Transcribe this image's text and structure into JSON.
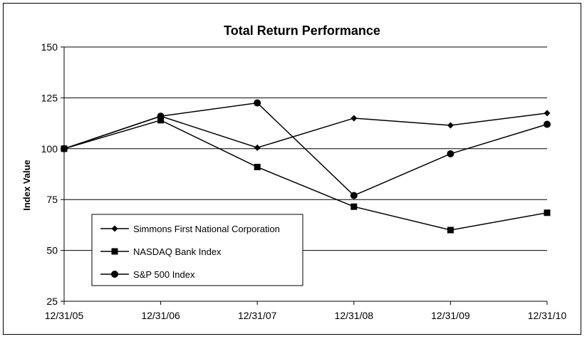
{
  "chart_data": {
    "type": "line",
    "title": "Total Return Performance",
    "xlabel": "",
    "ylabel": "Index Value",
    "categories": [
      "12/31/05",
      "12/31/06",
      "12/31/07",
      "12/31/08",
      "12/31/09",
      "12/31/10"
    ],
    "ylim": [
      25,
      150
    ],
    "yticks": [
      25,
      50,
      75,
      100,
      125,
      150
    ],
    "grid": true,
    "legend_position": "bottom-left",
    "series": [
      {
        "name": "Simmons First National Corporation",
        "marker": "diamond",
        "color": "#000000",
        "values": [
          100,
          116,
          100.5,
          115,
          111.5,
          117.5
        ]
      },
      {
        "name": "NASDAQ Bank Index",
        "marker": "square",
        "color": "#000000",
        "values": [
          100,
          114,
          91,
          71.5,
          60,
          68.5
        ]
      },
      {
        "name": "S&P 500 Index",
        "marker": "circle",
        "color": "#000000",
        "values": [
          100,
          116,
          122.5,
          77,
          97.5,
          112
        ]
      }
    ]
  }
}
